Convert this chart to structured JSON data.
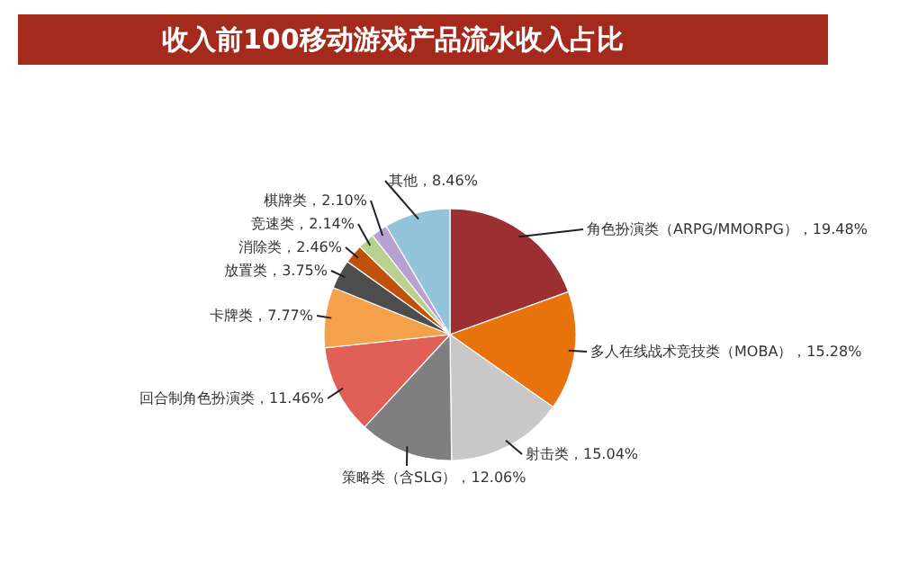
{
  "chart_data": {
    "type": "pie",
    "title": "收入前100移动游戏产品流水收入占比",
    "categories": [
      "角色扮演类（ARPG/MMORPG）",
      "多人在线战术竞技类（MOBA）",
      "射击类",
      "策略类（含SLG）",
      "回合制角色扮演类",
      "卡牌类",
      "放置类",
      "消除类",
      "竞速类",
      "棋牌类",
      "其他"
    ],
    "values": [
      19.48,
      15.28,
      15.04,
      12.06,
      11.46,
      7.77,
      3.75,
      2.46,
      2.14,
      2.1,
      8.46
    ],
    "value_labels": [
      "19.48%",
      "15.28%",
      "15.04%",
      "12.06%",
      "11.46%",
      "7.77%",
      "3.75%",
      "2.46%",
      "2.14%",
      "2.10%",
      "8.46%"
    ],
    "colors": [
      "#9b2f32",
      "#e8720c",
      "#c8c8c8",
      "#7f7f7f",
      "#e06058",
      "#f5a04a",
      "#4d4d4d",
      "#c0500a",
      "#b8d090",
      "#b8a0d0",
      "#92c4dc"
    ]
  }
}
